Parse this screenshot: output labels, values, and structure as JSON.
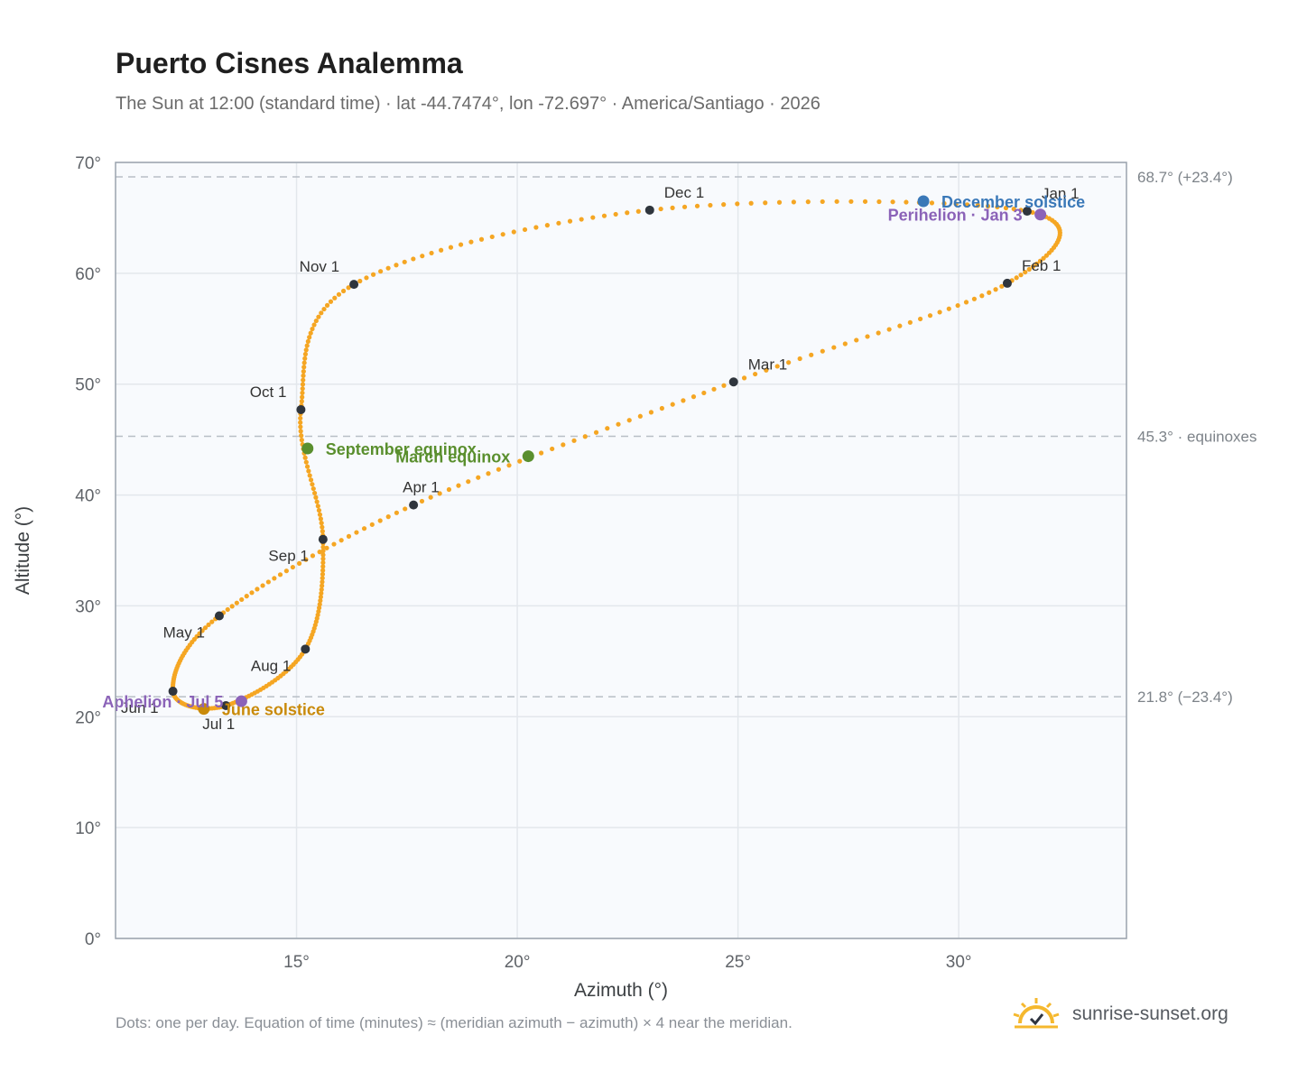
{
  "title": "Puerto Cisnes Analemma",
  "subtitle": "The Sun at 12:00 (standard time) · lat -44.7474°, lon -72.697° · America/Santiago · 2026",
  "footnote": "Dots: one per day. Equation of time (minutes) ≈ (meridian azimuth − azimuth) × 4 near the meridian.",
  "brand": {
    "text": "sunrise-sunset.org",
    "icon": "sun-logo-icon",
    "color": "#f5b82e"
  },
  "chart_data": {
    "type": "scatter",
    "xlabel": "Azimuth (°)",
    "ylabel": "Altitude (°)",
    "xlim": [
      10.9,
      33.8
    ],
    "ylim": [
      0,
      70
    ],
    "xticks": [
      {
        "value": 15,
        "label": "15°"
      },
      {
        "value": 20,
        "label": "20°"
      },
      {
        "value": 25,
        "label": "25°"
      },
      {
        "value": 30,
        "label": "30°"
      }
    ],
    "yticks": [
      {
        "value": 0,
        "label": "0°"
      },
      {
        "value": 10,
        "label": "10°"
      },
      {
        "value": 20,
        "label": "20°"
      },
      {
        "value": 30,
        "label": "30°"
      },
      {
        "value": 40,
        "label": "40°"
      },
      {
        "value": 50,
        "label": "50°"
      },
      {
        "value": 60,
        "label": "60°"
      },
      {
        "value": 70,
        "label": "70°"
      }
    ],
    "grid": true,
    "curve_color": "#f5a623",
    "reference_lines": [
      {
        "value": 68.7,
        "label": "68.7° (+23.4°)"
      },
      {
        "value": 45.3,
        "label": "45.3° · equinoxes"
      },
      {
        "value": 21.8,
        "label": "21.8° (−23.4°)"
      }
    ],
    "months": [
      {
        "label": "Jan 1",
        "az": 31.55,
        "alt": 65.6,
        "pos": "upper-right"
      },
      {
        "label": "Feb 1",
        "az": 31.1,
        "alt": 59.1,
        "pos": "upper-right"
      },
      {
        "label": "Mar 1",
        "az": 24.9,
        "alt": 50.2,
        "pos": "upper-right"
      },
      {
        "label": "Apr 1",
        "az": 17.65,
        "alt": 39.1,
        "pos": "lower-right"
      },
      {
        "label": "May 1",
        "az": 13.25,
        "alt": 29.1,
        "pos": "lower-left"
      },
      {
        "label": "Jun 1",
        "az": 12.2,
        "alt": 22.3,
        "pos": "lower-left"
      },
      {
        "label": "Jul 1",
        "az": 13.4,
        "alt": 21.0,
        "pos": "below"
      },
      {
        "label": "Aug 1",
        "az": 15.2,
        "alt": 26.1,
        "pos": "lower-left"
      },
      {
        "label": "Sep 1",
        "az": 15.6,
        "alt": 36.0,
        "pos": "lower-left"
      },
      {
        "label": "Oct 1",
        "az": 15.1,
        "alt": 47.7,
        "pos": "upper-left"
      },
      {
        "label": "Nov 1",
        "az": 16.3,
        "alt": 59.0,
        "pos": "upper-left"
      },
      {
        "label": "Dec 1",
        "az": 23.0,
        "alt": 65.7,
        "pos": "upper-right"
      }
    ],
    "events": [
      {
        "label": "December solstice",
        "az": 29.2,
        "alt": 66.5,
        "color": "#3a78b8",
        "pos": "right"
      },
      {
        "label": "Perihelion · Jan 3",
        "az": 31.85,
        "alt": 65.3,
        "color": "#8b63b8",
        "pos": "left"
      },
      {
        "label": "March equinox",
        "az": 20.25,
        "alt": 43.5,
        "color": "#5a8f2e",
        "pos": "left"
      },
      {
        "label": "September equinox",
        "az": 15.25,
        "alt": 44.2,
        "color": "#5a8f2e",
        "pos": "right"
      },
      {
        "label": "June solstice",
        "az": 12.9,
        "alt": 20.7,
        "color": "#c98a0a",
        "pos": "right"
      },
      {
        "label": "Aphelion · Jul 5",
        "az": 13.75,
        "alt": 21.4,
        "color": "#8b63b8",
        "pos": "left"
      }
    ]
  }
}
